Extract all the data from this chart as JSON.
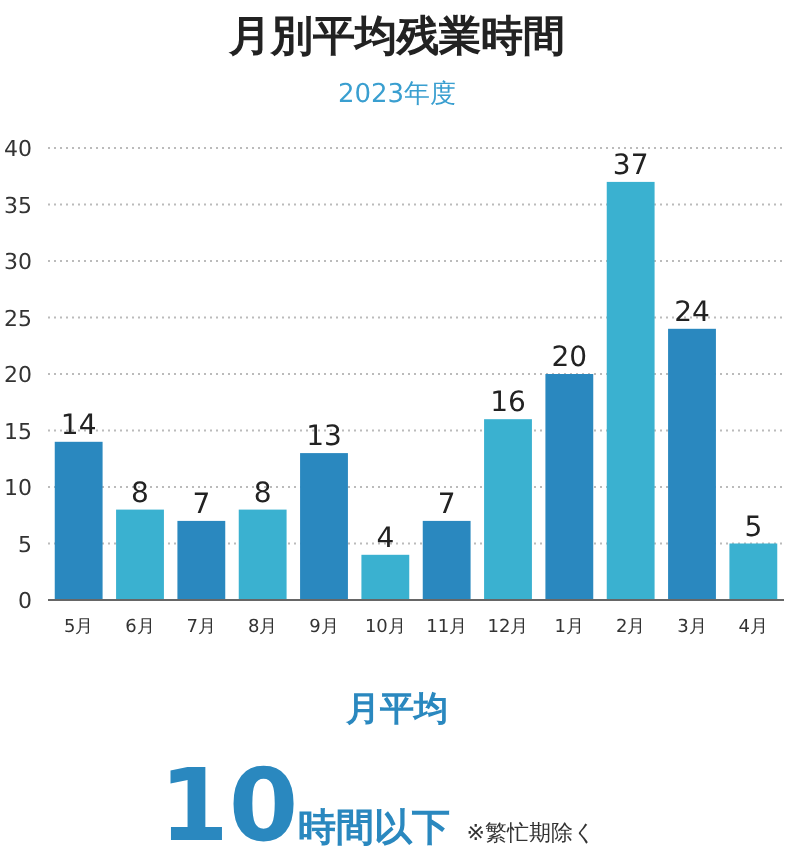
{
  "chart_data": {
    "type": "bar",
    "title": "月別平均残業時間",
    "subtitle": "2023年度",
    "categories": [
      "5月",
      "6月",
      "7月",
      "8月",
      "9月",
      "10月",
      "11月",
      "12月",
      "1月",
      "2月",
      "3月",
      "4月"
    ],
    "values": [
      14,
      8,
      7,
      8,
      13,
      4,
      7,
      16,
      20,
      37,
      24,
      5
    ],
    "colors": [
      "#2a88bf",
      "#3ab1d0",
      "#2a88bf",
      "#3ab1d0",
      "#2a88bf",
      "#3ab1d0",
      "#2a88bf",
      "#3ab1d0",
      "#2a88bf",
      "#3ab1d0",
      "#2a88bf",
      "#3ab1d0"
    ],
    "ylim": [
      0,
      40
    ],
    "yticks": [
      0,
      5,
      10,
      15,
      20,
      25,
      30,
      35,
      40
    ],
    "grid": "y",
    "data_labels": true,
    "annotations": [
      "月平均",
      "10",
      "時間以下",
      "※繁忙期除く"
    ]
  }
}
